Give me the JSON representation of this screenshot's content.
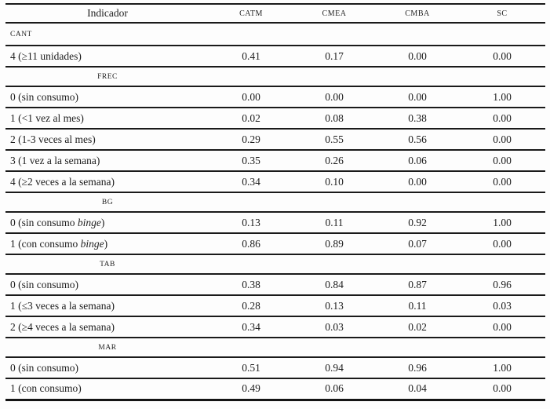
{
  "colors": {
    "background": "#fdfdfd",
    "text": "#1c1c1c",
    "rule": "#1a1a1a"
  },
  "table": {
    "header": {
      "indicator": "Indicador",
      "classes": [
        "CATM",
        "CMEA",
        "CMBA",
        "SC"
      ]
    },
    "sections": [
      {
        "label": "CANT",
        "label_align": "left",
        "rows": [
          {
            "label": [
              {
                "text": "4 (≥11 unidades)",
                "italic": false
              }
            ],
            "values": [
              "0.41",
              "0.17",
              "0.00",
              "0.00"
            ]
          }
        ]
      },
      {
        "label": "FREC",
        "label_align": "center",
        "rows": [
          {
            "label": [
              {
                "text": "0 (sin consumo)",
                "italic": false
              }
            ],
            "values": [
              "0.00",
              "0.00",
              "0.00",
              "1.00"
            ]
          },
          {
            "label": [
              {
                "text": "1 (<1 vez al mes)",
                "italic": false
              }
            ],
            "values": [
              "0.02",
              "0.08",
              "0.38",
              "0.00"
            ]
          },
          {
            "label": [
              {
                "text": "2 (1-3 veces al mes)",
                "italic": false
              }
            ],
            "values": [
              "0.29",
              "0.55",
              "0.56",
              "0.00"
            ]
          },
          {
            "label": [
              {
                "text": "3 (1 vez a la semana)",
                "italic": false
              }
            ],
            "values": [
              "0.35",
              "0.26",
              "0.06",
              "0.00"
            ]
          },
          {
            "label": [
              {
                "text": "4 (≥2 veces a la semana)",
                "italic": false
              }
            ],
            "values": [
              "0.34",
              "0.10",
              "0.00",
              "0.00"
            ]
          }
        ]
      },
      {
        "label": "BG",
        "label_align": "center",
        "rows": [
          {
            "label": [
              {
                "text": "0 (sin consumo ",
                "italic": false
              },
              {
                "text": "binge",
                "italic": true
              },
              {
                "text": ")",
                "italic": false
              }
            ],
            "values": [
              "0.13",
              "0.11",
              "0.92",
              "1.00"
            ]
          },
          {
            "label": [
              {
                "text": "1 (con consumo ",
                "italic": false
              },
              {
                "text": "binge",
                "italic": true
              },
              {
                "text": ")",
                "italic": false
              }
            ],
            "values": [
              "0.86",
              "0.89",
              "0.07",
              "0.00"
            ]
          }
        ]
      },
      {
        "label": "TAB",
        "label_align": "center",
        "rows": [
          {
            "label": [
              {
                "text": "0 (sin consumo)",
                "italic": false
              }
            ],
            "values": [
              "0.38",
              "0.84",
              "0.87",
              "0.96"
            ]
          },
          {
            "label": [
              {
                "text": "1 (≤3 veces a la semana)",
                "italic": false
              }
            ],
            "values": [
              "0.28",
              "0.13",
              "0.11",
              "0.03"
            ]
          },
          {
            "label": [
              {
                "text": "2 (≥4 veces a la semana)",
                "italic": false
              }
            ],
            "values": [
              "0.34",
              "0.03",
              "0.02",
              "0.00"
            ]
          }
        ]
      },
      {
        "label": "MAR",
        "label_align": "center",
        "rows": [
          {
            "label": [
              {
                "text": "0 (sin consumo)",
                "italic": false
              }
            ],
            "values": [
              "0.51",
              "0.94",
              "0.96",
              "1.00"
            ]
          },
          {
            "label": [
              {
                "text": "1 (con consumo)",
                "italic": false
              }
            ],
            "values": [
              "0.49",
              "0.06",
              "0.04",
              "0.00"
            ]
          }
        ]
      }
    ]
  }
}
